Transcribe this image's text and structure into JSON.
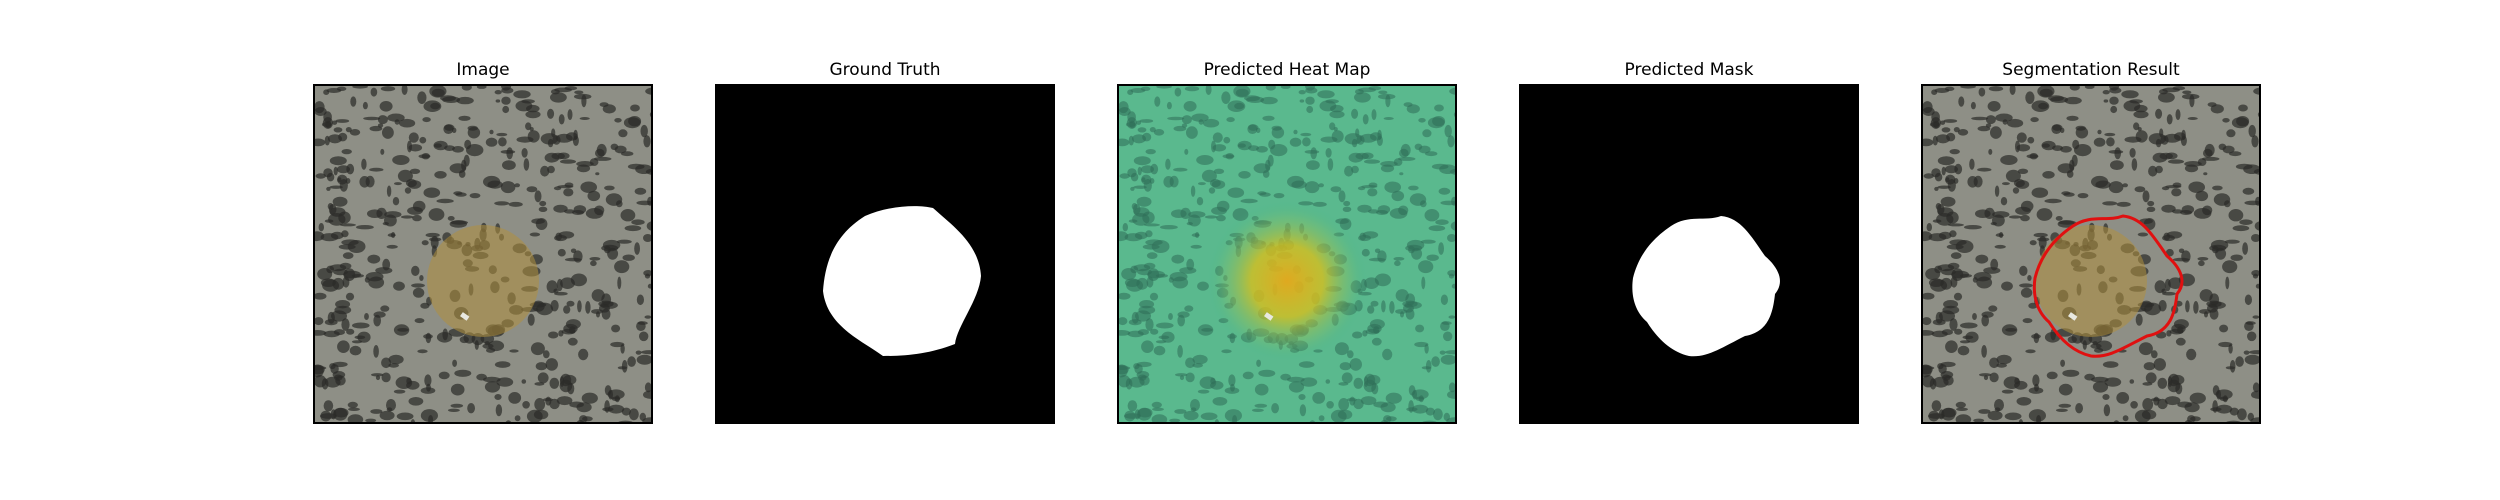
{
  "panels": [
    {
      "title": "Image"
    },
    {
      "title": "Ground Truth"
    },
    {
      "title": "Predicted Heat Map"
    },
    {
      "title": "Predicted Mask"
    },
    {
      "title": "Segmentation Result"
    }
  ],
  "colors": {
    "background": "#ffffff",
    "texture_base": "#8e8f86",
    "texture_spot": "#2b2b28",
    "lesion": "#b0903e",
    "mask_foreground": "#ffffff",
    "mask_background": "#000000",
    "heat_low": "#3fb38a",
    "heat_high": "#e6c21a",
    "contour": "#e01010"
  }
}
